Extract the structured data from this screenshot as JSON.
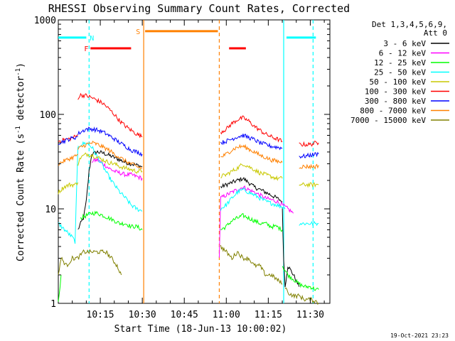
{
  "chart_data": {
    "type": "line",
    "title": "RHESSI Observing Summary Count Rates, Corrected",
    "xlabel": "Start Time (18-Jun-13 10:00:02)",
    "ylabel": "Corrected Count Rate (s⁻¹ detector⁻¹)",
    "ylabel_main": "Corrected Count Rate (s",
    "ylabel_exp1": "-1",
    "ylabel_mid": " detector",
    "ylabel_exp2": "-1",
    "ylabel_end": ")",
    "xlim_minutes": [
      0,
      97
    ],
    "ylim": [
      1,
      1000
    ],
    "yscale": "log",
    "x_ticks": [
      {
        "minute": 15,
        "label": "10:15"
      },
      {
        "minute": 30,
        "label": "10:30"
      },
      {
        "minute": 45,
        "label": "10:45"
      },
      {
        "minute": 60,
        "label": "11:00"
      },
      {
        "minute": 75,
        "label": "11:15"
      },
      {
        "minute": 90,
        "label": "11:30"
      }
    ],
    "y_ticks": [
      {
        "value": 1,
        "label": "1"
      },
      {
        "value": 10,
        "label": "10"
      },
      {
        "value": 100,
        "label": "100"
      },
      {
        "value": 1000,
        "label": "1000"
      }
    ],
    "legend_header": [
      "Det 1,3,4,5,6,9,",
      "Att 0"
    ],
    "legend_position": "right",
    "series": [
      {
        "name": "3 - 6 keV",
        "color": "#000000",
        "segments": [
          {
            "x": [
              7,
              8,
              9,
              10,
              11,
              12
            ],
            "y": [
              6,
              7,
              8,
              12,
              25,
              38
            ]
          },
          {
            "x": [
              12,
              14,
              16,
              18,
              20,
              22,
              24,
              26,
              28,
              30
            ],
            "y": [
              38,
              40,
              39,
              37,
              35,
              33,
              31,
              30,
              29,
              28
            ]
          },
          {
            "x": [
              58,
              60,
              62,
              64,
              66,
              68,
              70,
              72,
              74,
              76,
              78,
              80
            ],
            "y": [
              17,
              18,
              19,
              20,
              21,
              19,
              17,
              16,
              15,
              14,
              13,
              12
            ]
          },
          {
            "x": [
              80,
              80.5,
              81,
              82,
              84,
              86
            ],
            "y": [
              10,
              3,
              1.5,
              2.5,
              2,
              1.5
            ]
          }
        ]
      },
      {
        "name": "6 - 12 keV",
        "color": "#ff00ff",
        "segments": [
          {
            "x": [
              12,
              14,
              16,
              18,
              20,
              22,
              24,
              26,
              28,
              30
            ],
            "y": [
              32,
              33,
              30,
              27,
              25,
              24,
              23,
              23,
              22,
              21
            ]
          },
          {
            "x": [
              57.5,
              58,
              60,
              62,
              64,
              66,
              68,
              70,
              72,
              74,
              76,
              78,
              80,
              82,
              84
            ],
            "y": [
              3,
              13,
              14,
              15,
              16,
              17,
              16,
              15,
              14,
              13,
              12.5,
              12,
              11,
              10,
              9
            ]
          }
        ]
      },
      {
        "name": "12 - 25 keV",
        "color": "#00ff00",
        "segments": [
          {
            "x": [
              0,
              1
            ],
            "y": [
              1,
              2
            ]
          },
          {
            "x": [
              8,
              10,
              12,
              14,
              16,
              18,
              20,
              22,
              24,
              26,
              28,
              30
            ],
            "y": [
              8,
              8.5,
              9,
              9,
              8.5,
              8,
              7.5,
              7,
              7,
              6.5,
              6.5,
              6
            ]
          },
          {
            "x": [
              58,
              60,
              62,
              64,
              66,
              68,
              70,
              72,
              74,
              76,
              78,
              80
            ],
            "y": [
              6,
              6.5,
              7.5,
              8,
              8.5,
              8,
              7.5,
              7,
              7,
              6.5,
              6.5,
              6
            ]
          },
          {
            "x": [
              80,
              82,
              84,
              86,
              88,
              90,
              92,
              93
            ],
            "y": [
              2.5,
              2,
              1.8,
              1.6,
              1.5,
              1.5,
              1.4,
              1.4
            ]
          }
        ]
      },
      {
        "name": "25 - 50 keV",
        "color": "#00ffff",
        "segments": [
          {
            "x": [
              0,
              5,
              6,
              7
            ],
            "y": [
              7,
              5,
              4.5,
              45
            ]
          },
          {
            "x": [
              7,
              8,
              10,
              12,
              14,
              16,
              18,
              20,
              22,
              24,
              26,
              28,
              30
            ],
            "y": [
              45,
              48,
              50,
              45,
              35,
              28,
              22,
              18,
              15,
              13,
              11,
              10,
              9.5
            ]
          },
          {
            "x": [
              58,
              60,
              62,
              64,
              66,
              68,
              70,
              72,
              74,
              76,
              78,
              80,
              81
            ],
            "y": [
              10,
              11,
              13,
              15,
              16,
              15,
              14,
              13,
              12,
              11.5,
              11,
              10.5,
              10
            ]
          },
          {
            "x": [
              86,
              88,
              90,
              92,
              93
            ],
            "y": [
              7,
              7,
              7,
              7,
              7
            ]
          }
        ]
      },
      {
        "name": "50 - 100 keV",
        "color": "#c8c800",
        "segments": [
          {
            "x": [
              0,
              2,
              4,
              6,
              7
            ],
            "y": [
              15,
              17,
              18,
              18,
              19
            ]
          },
          {
            "x": [
              7,
              8,
              10,
              12,
              14,
              16,
              18,
              20,
              22,
              24,
              26,
              28,
              30
            ],
            "y": [
              30,
              35,
              38,
              37,
              35,
              33,
              31,
              30,
              28,
              27,
              26,
              25,
              25
            ]
          },
          {
            "x": [
              58,
              60,
              62,
              64,
              66,
              68,
              70,
              72,
              74,
              76,
              78,
              80
            ],
            "y": [
              22,
              23,
              25,
              27,
              30,
              28,
              26,
              24,
              23,
              22,
              21,
              21
            ]
          },
          {
            "x": [
              86,
              88,
              90,
              92,
              93
            ],
            "y": [
              18,
              18,
              18,
              18,
              18
            ]
          }
        ]
      },
      {
        "name": "100 - 300 keV",
        "color": "#ff0000",
        "segments": [
          {
            "x": [
              0,
              2,
              4,
              6,
              7
            ],
            "y": [
              52,
              54,
              55,
              58,
              60
            ]
          },
          {
            "x": [
              7,
              8,
              10,
              12,
              14,
              16,
              18,
              20,
              22,
              24,
              26,
              28,
              30
            ],
            "y": [
              150,
              160,
              158,
              150,
              140,
              130,
              115,
              100,
              85,
              75,
              68,
              62,
              58
            ]
          },
          {
            "x": [
              58,
              60,
              62,
              64,
              66,
              68,
              70,
              72,
              74,
              76,
              78,
              80
            ],
            "y": [
              65,
              70,
              80,
              88,
              92,
              85,
              75,
              68,
              62,
              58,
              55,
              52
            ]
          },
          {
            "x": [
              86,
              88,
              90,
              92,
              93
            ],
            "y": [
              48,
              48,
              48,
              50,
              50
            ]
          }
        ]
      },
      {
        "name": "300 - 800 keV",
        "color": "#0000ff",
        "segments": [
          {
            "x": [
              0,
              2,
              4,
              6,
              7
            ],
            "y": [
              50,
              52,
              55,
              57,
              58
            ]
          },
          {
            "x": [
              7,
              8,
              10,
              12,
              14,
              16,
              18,
              20,
              22,
              24,
              26,
              28,
              30
            ],
            "y": [
              62,
              65,
              70,
              70,
              68,
              65,
              60,
              55,
              50,
              46,
              42,
              40,
              38
            ]
          },
          {
            "x": [
              58,
              60,
              62,
              64,
              66,
              68,
              70,
              72,
              74,
              76,
              78,
              80
            ],
            "y": [
              50,
              52,
              55,
              58,
              60,
              57,
              54,
              50,
              48,
              46,
              45,
              44
            ]
          },
          {
            "x": [
              86,
              88,
              90,
              92,
              93
            ],
            "y": [
              36,
              36,
              37,
              38,
              38
            ]
          }
        ]
      },
      {
        "name": "800 - 7000 keV",
        "color": "#ff8000",
        "segments": [
          {
            "x": [
              0,
              2,
              4,
              6,
              7
            ],
            "y": [
              30,
              32,
              34,
              36,
              38
            ]
          },
          {
            "x": [
              7,
              8,
              10,
              12,
              14,
              16,
              18,
              20,
              22,
              24,
              26,
              28,
              30
            ],
            "y": [
              42,
              45,
              48,
              50,
              48,
              45,
              42,
              38,
              35,
              32,
              30,
              28,
              27
            ]
          },
          {
            "x": [
              58,
              60,
              62,
              64,
              66,
              68,
              70,
              72,
              74,
              76,
              78,
              80
            ],
            "y": [
              35,
              38,
              42,
              45,
              46,
              43,
              40,
              37,
              35,
              33,
              32,
              31
            ]
          },
          {
            "x": [
              86,
              88,
              90,
              92,
              93
            ],
            "y": [
              28,
              28,
              28,
              28,
              29
            ]
          }
        ]
      },
      {
        "name": "7000 - 15000 keV",
        "color": "#808000",
        "segments": [
          {
            "x": [
              0,
              1,
              3,
              5,
              7,
              9,
              11,
              13,
              15,
              17,
              19,
              21,
              22.5
            ],
            "y": [
              2,
              3,
              2.5,
              3,
              3,
              3.5,
              3.5,
              3.5,
              3.5,
              3.5,
              3,
              2.5,
              2
            ]
          },
          {
            "x": [
              58,
              60,
              62,
              64,
              66,
              68,
              70,
              72,
              74,
              76,
              78,
              80
            ],
            "y": [
              4,
              3.5,
              3,
              3.5,
              3,
              3,
              2.5,
              2.5,
              2,
              2,
              1.8,
              1.6
            ]
          },
          {
            "x": [
              81,
              82,
              84,
              86,
              88,
              90,
              92,
              93
            ],
            "y": [
              1.5,
              1.3,
              1.2,
              1.2,
              1.1,
              1.1,
              1.05,
              1.0
            ]
          }
        ]
      }
    ],
    "vertical_markers": [
      {
        "minute": 11,
        "color": "#00ffff",
        "style": "dashed"
      },
      {
        "minute": 30.5,
        "color": "#ff8000",
        "style": "solid"
      },
      {
        "minute": 57.5,
        "color": "#ff8000",
        "style": "dashed"
      },
      {
        "minute": 80.5,
        "color": "#00ffff",
        "style": "solid"
      },
      {
        "minute": 91,
        "color": "#00ffff",
        "style": "dashed"
      }
    ],
    "flag_bars": [
      {
        "label": "N",
        "color": "#00ffff",
        "x0": 0,
        "x1": 10,
        "y": 650,
        "label_at": 12
      },
      {
        "label": "F",
        "color": "#ff0000",
        "x0": 11.5,
        "x1": 26,
        "y": 500,
        "label_at": 10
      },
      {
        "label": "S",
        "color": "#ff8000",
        "x0": 31,
        "x1": 57,
        "y": 760,
        "label_at": 28.5
      },
      {
        "label": "",
        "color": "#ff0000",
        "x0": 61,
        "x1": 67,
        "y": 500,
        "label_at": 0
      },
      {
        "label": "",
        "color": "#00ffff",
        "x0": 81.5,
        "x1": 92,
        "y": 650,
        "label_at": 0
      }
    ],
    "footer_timestamp": "19-Oct-2021 23:23"
  }
}
